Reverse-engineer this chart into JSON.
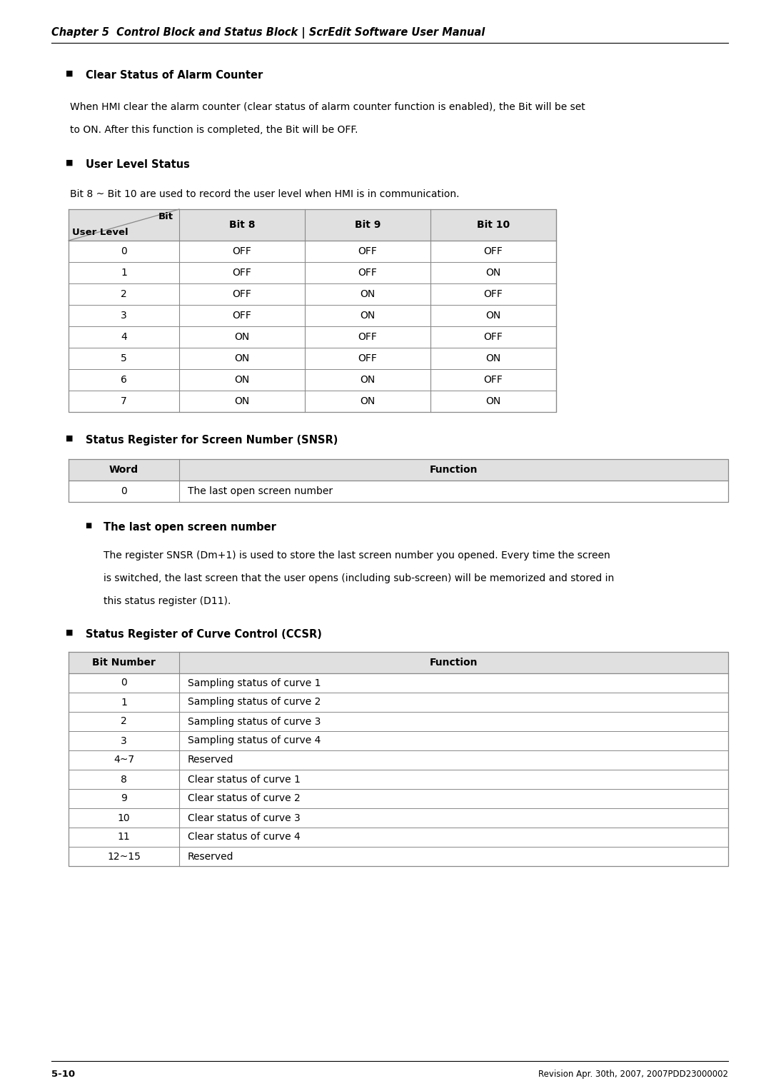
{
  "page_header": "Chapter 5  Control Block and Status Block | ScrEdit Software User Manual",
  "page_footer_left": "5-10",
  "page_footer_right": "Revision Apr. 30th, 2007, 2007PDD23000002",
  "section1_title": "Clear Status of Alarm Counter",
  "section1_text_line1": "When HMI clear the alarm counter (clear status of alarm counter function is enabled), the Bit will be set",
  "section1_text_line2": "to ON. After this function is completed, the Bit will be OFF.",
  "section2_title": "User Level Status",
  "section2_intro": "Bit 8 ~ Bit 10 are used to record the user level when HMI is in communication.",
  "user_level_table": {
    "header_diagonal_top": "Bit",
    "header_col1": "User Level",
    "header_col2": "Bit 8",
    "header_col3": "Bit 9",
    "header_col4": "Bit 10",
    "rows": [
      [
        "0",
        "OFF",
        "OFF",
        "OFF"
      ],
      [
        "1",
        "OFF",
        "OFF",
        "ON"
      ],
      [
        "2",
        "OFF",
        "ON",
        "OFF"
      ],
      [
        "3",
        "OFF",
        "ON",
        "ON"
      ],
      [
        "4",
        "ON",
        "OFF",
        "OFF"
      ],
      [
        "5",
        "ON",
        "OFF",
        "ON"
      ],
      [
        "6",
        "ON",
        "ON",
        "OFF"
      ],
      [
        "7",
        "ON",
        "ON",
        "ON"
      ]
    ]
  },
  "section3_title": "Status Register for Screen Number (SNSR)",
  "snsr_table": {
    "headers": [
      "Word",
      "Function"
    ],
    "rows": [
      [
        "0",
        "The last open screen number"
      ]
    ]
  },
  "section3_sub_title": "The last open screen number",
  "section3_sub_text_line1": "The register SNSR (Dm+1) is used to store the last screen number you opened. Every time the screen",
  "section3_sub_text_line2": "is switched, the last screen that the user opens (including sub-screen) will be memorized and stored in",
  "section3_sub_text_line3": "this status register (D11).",
  "section4_title": "Status Register of Curve Control (CCSR)",
  "ccsr_table": {
    "headers": [
      "Bit Number",
      "Function"
    ],
    "rows": [
      [
        "0",
        "Sampling status of curve 1"
      ],
      [
        "1",
        "Sampling status of curve 2"
      ],
      [
        "2",
        "Sampling status of curve 3"
      ],
      [
        "3",
        "Sampling status of curve 4"
      ],
      [
        "4~7",
        "Reserved"
      ],
      [
        "8",
        "Clear status of curve 1"
      ],
      [
        "9",
        "Clear status of curve 2"
      ],
      [
        "10",
        "Clear status of curve 3"
      ],
      [
        "11",
        "Clear status of curve 4"
      ],
      [
        "12~15",
        "Reserved"
      ]
    ]
  },
  "bg_color": "#ffffff",
  "header_bg": "#e0e0e0",
  "table_line_color": "#888888",
  "text_color": "#000000"
}
